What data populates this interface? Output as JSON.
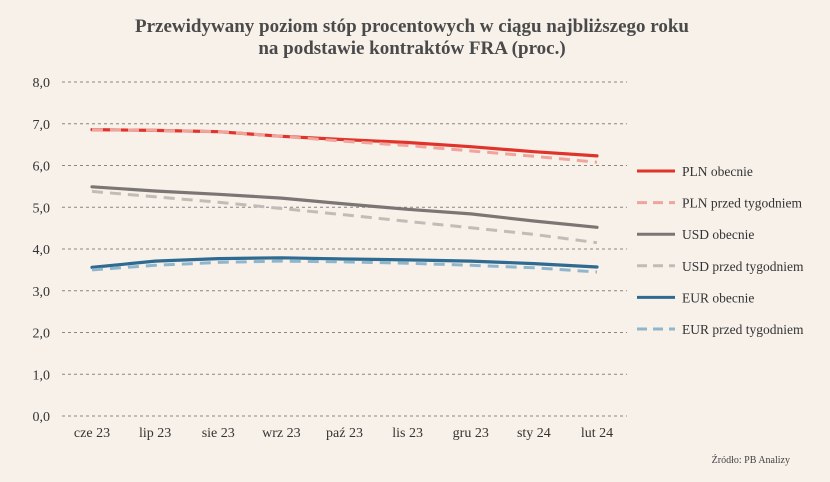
{
  "chart_data": {
    "type": "line",
    "title_lines": [
      "Przewidywany poziom stóp procentowych w ciągu najbliższego roku",
      "na podstawie kontraktów FRA (proc.)"
    ],
    "categories": [
      "cze 23",
      "lip 23",
      "sie 23",
      "wrz 23",
      "paź 23",
      "lis 23",
      "gru 23",
      "sty 24",
      "lut 24"
    ],
    "y_ticks": [
      "0,0",
      "1,0",
      "2,0",
      "3,0",
      "4,0",
      "5,0",
      "6,0",
      "7,0",
      "8,0"
    ],
    "ylim": [
      0,
      8
    ],
    "grid": "horizontal dashed",
    "legend_position": "right",
    "source": "Źródło: PB Analizy",
    "series": [
      {
        "name": "PLN obecnie",
        "color": "#e0342b",
        "dashed": false,
        "values": [
          6.86,
          6.84,
          6.81,
          6.7,
          6.62,
          6.55,
          6.45,
          6.33,
          6.23
        ]
      },
      {
        "name": "PLN przed tygodniem",
        "color": "#f0a49c",
        "dashed": true,
        "values": [
          6.86,
          6.84,
          6.81,
          6.7,
          6.58,
          6.48,
          6.35,
          6.22,
          6.08
        ]
      },
      {
        "name": "USD obecnie",
        "color": "#7b7674",
        "dashed": false,
        "values": [
          5.49,
          5.39,
          5.31,
          5.22,
          5.08,
          4.95,
          4.84,
          4.67,
          4.52
        ]
      },
      {
        "name": "USD przed tygodniem",
        "color": "#c3bcb6",
        "dashed": true,
        "values": [
          5.38,
          5.25,
          5.12,
          4.97,
          4.82,
          4.66,
          4.51,
          4.35,
          4.15
        ]
      },
      {
        "name": "EUR obecnie",
        "color": "#2f6a91",
        "dashed": false,
        "values": [
          3.56,
          3.71,
          3.77,
          3.79,
          3.76,
          3.74,
          3.71,
          3.65,
          3.57
        ]
      },
      {
        "name": "EUR przed tygodniem",
        "color": "#8fb6cb",
        "dashed": true,
        "values": [
          3.5,
          3.61,
          3.68,
          3.71,
          3.69,
          3.66,
          3.61,
          3.55,
          3.45
        ]
      }
    ]
  }
}
